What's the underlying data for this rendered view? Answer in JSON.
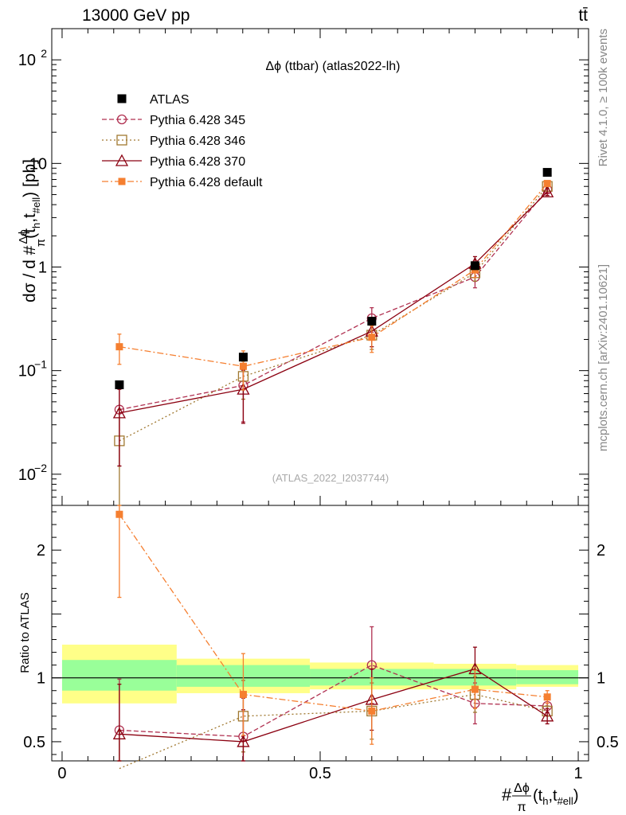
{
  "header": {
    "left": "13000 GeV pp",
    "right": "tt̄"
  },
  "side_labels": {
    "rivet": "Rivet 4.1.0, ≥ 100k events",
    "mcplots": "mcplots.cern.ch [arXiv:2401.10621]"
  },
  "colors": {
    "atlas": "#000000",
    "p345": "#b03050",
    "p346": "#a07830",
    "p370": "#8b0010",
    "pdefault": "#f57f30",
    "band_inner": "#99ff99",
    "band_outer": "#ffff88"
  },
  "chart_data": {
    "type": "line",
    "title": "Δϕ (ttbar) (atlas2022-lh)",
    "watermark": "(ATLAS_2022_I2037744)",
    "xlabel": {
      "main": "#",
      "frac_num": "Δϕ",
      "frac_den": "π",
      "open": "(t",
      "sub1": "h",
      "sep": ",t",
      "sub2": "#ell",
      "close": ")"
    },
    "ylabel": {
      "prefix": "dσ / d #",
      "frac_num": "Δϕ",
      "frac_den": "π",
      "open": "(t",
      "sub1": "h",
      "sep": ",t",
      "sub2": "#ell",
      "close": ") [pb]"
    },
    "ratio_ylabel": "Ratio to ATLAS",
    "xlim": [
      -0.02,
      1.02
    ],
    "ylim": [
      0.005,
      200
    ],
    "yscale": "log",
    "ratio_ylim": [
      0.35,
      2.35
    ],
    "x_ticks": [
      {
        "v": 0,
        "label": "0"
      },
      {
        "v": 0.5,
        "label": "0.5"
      },
      {
        "v": 1,
        "label": "1"
      }
    ],
    "y_ticks": [
      {
        "v": 0.01,
        "base": "10",
        "exp": "−2"
      },
      {
        "v": 0.1,
        "base": "10",
        "exp": "−1"
      },
      {
        "v": 1,
        "base": "1",
        "exp": ""
      },
      {
        "v": 10,
        "base": "10",
        "exp": ""
      },
      {
        "v": 100,
        "base": "10",
        "exp": "2"
      }
    ],
    "ratio_ticks": [
      {
        "v": 0.5,
        "label": "0.5"
      },
      {
        "v": 1,
        "label": "1"
      },
      {
        "v": 2,
        "label": "2"
      }
    ],
    "bin_edges": [
      0,
      0.222,
      0.48,
      0.72,
      0.88,
      1.0
    ],
    "x": [
      0.111,
      0.351,
      0.6,
      0.8,
      0.94
    ],
    "atlas": {
      "name": "ATLAS",
      "values": [
        0.073,
        0.135,
        0.3,
        1.03,
        8.2
      ],
      "band_inner": [
        [
          0.9,
          1.14
        ],
        [
          0.93,
          1.1
        ],
        [
          0.94,
          1.07
        ],
        [
          0.94,
          1.07
        ],
        [
          0.95,
          1.06
        ]
      ],
      "band_outer": [
        [
          0.8,
          1.26
        ],
        [
          0.88,
          1.15
        ],
        [
          0.91,
          1.12
        ],
        [
          0.91,
          1.11
        ],
        [
          0.93,
          1.1
        ]
      ]
    },
    "series": [
      {
        "key": "p345",
        "name": "Pythia 6.428 345",
        "marker": "circle",
        "dash": "6,3",
        "values": [
          0.042,
          0.072,
          0.32,
          0.8,
          5.6
        ],
        "errors": [
          0.03,
          0.04,
          0.085,
          0.17,
          0.35
        ],
        "ratio": [
          0.59,
          0.54,
          1.1,
          0.8,
          0.78
        ],
        "ratio_err": [
          0.4,
          0.3,
          0.3,
          0.16,
          0.05
        ]
      },
      {
        "key": "p346",
        "name": "Pythia 6.428 346",
        "marker": "square",
        "dash": "2,3",
        "values": [
          0.021,
          0.088,
          0.22,
          0.88,
          6.0
        ],
        "errors": [
          0.021,
          0.035,
          0.06,
          0.15,
          0.3
        ],
        "ratio": [
          0.29,
          0.7,
          0.74,
          0.87,
          0.74
        ],
        "ratio_err": [
          0.29,
          0.28,
          0.22,
          0.14,
          0.04
        ]
      },
      {
        "key": "p370",
        "name": "Pythia 6.428 370",
        "marker": "triangle",
        "dash": "",
        "values": [
          0.039,
          0.066,
          0.24,
          1.08,
          5.3
        ],
        "errors": [
          0.027,
          0.035,
          0.07,
          0.18,
          0.4
        ],
        "ratio": [
          0.56,
          0.5,
          0.83,
          1.07,
          0.7
        ],
        "ratio_err": [
          0.39,
          0.25,
          0.24,
          0.17,
          0.06
        ]
      },
      {
        "key": "pdefault",
        "name": "Pythia 6.428 default",
        "marker": "fsquare",
        "dash": "8,3,2,3",
        "values": [
          0.17,
          0.11,
          0.21,
          0.94,
          6.4
        ],
        "errors": [
          0.055,
          0.045,
          0.06,
          0.15,
          0.3
        ],
        "ratio": [
          2.28,
          0.87,
          0.74,
          0.91,
          0.85
        ],
        "ratio_err": [
          0.65,
          0.32,
          0.26,
          0.15,
          0.05
        ]
      }
    ]
  }
}
